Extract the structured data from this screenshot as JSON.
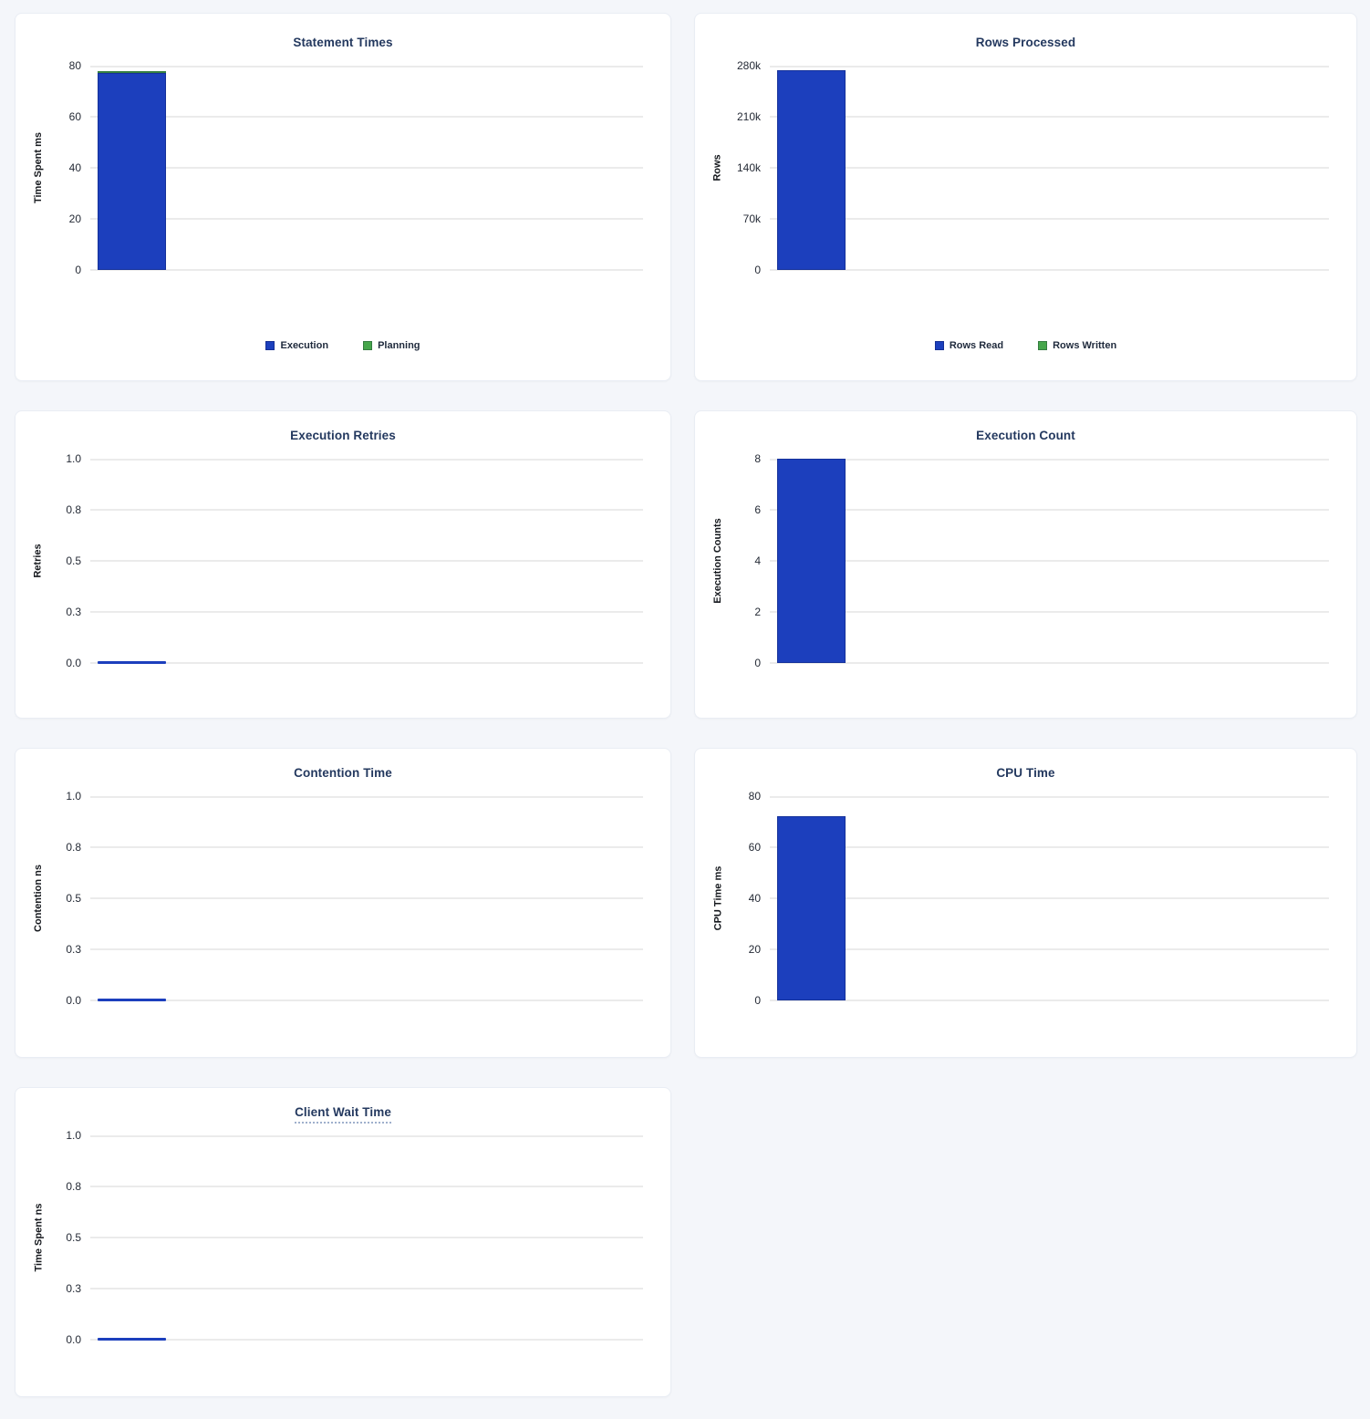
{
  "colors": {
    "bar_blue": "#1c3fbd",
    "bar_green": "#46a64b",
    "grid_line": "#ebebeb",
    "title_text": "#24395f",
    "tick_text": "#242a35",
    "page_background": "#f4f6fa",
    "panel_background": "#ffffff"
  },
  "chart_data": [
    {
      "type": "bar",
      "title": "Statement Times",
      "ylabel": "Time Spent ms",
      "ylim": [
        0,
        80
      ],
      "yticks": [
        0,
        20,
        40,
        60,
        80
      ],
      "ytick_labels": [
        "0",
        "20",
        "40",
        "60",
        "80"
      ],
      "stacked": true,
      "grid": true,
      "legend_position": "bottom",
      "series": [
        {
          "name": "Execution",
          "color": "#1c3fbd",
          "values": [
            77
          ]
        },
        {
          "name": "Planning",
          "color": "#46a64b",
          "values": [
            1
          ]
        }
      ]
    },
    {
      "type": "bar",
      "title": "Rows Processed",
      "ylabel": "Rows",
      "ylim": [
        0,
        280000
      ],
      "yticks": [
        0,
        70000,
        140000,
        210000,
        280000
      ],
      "ytick_labels": [
        "0",
        "70k",
        "140k",
        "210k",
        "280k"
      ],
      "stacked": true,
      "grid": true,
      "legend_position": "bottom",
      "series": [
        {
          "name": "Rows Read",
          "color": "#1c3fbd",
          "values": [
            274000
          ]
        },
        {
          "name": "Rows Written",
          "color": "#46a64b",
          "values": [
            0
          ]
        }
      ]
    },
    {
      "type": "bar",
      "title": "Execution Retries",
      "ylabel": "Retries",
      "ylim": [
        0,
        1
      ],
      "yticks": [
        0,
        0.25,
        0.5,
        0.75,
        1
      ],
      "ytick_labels": [
        "0.0",
        "0.3",
        "0.5",
        "0.8",
        "1.0"
      ],
      "stacked": false,
      "grid": true,
      "legend_position": "none",
      "series": [
        {
          "color": "#1c3fbd",
          "values": [
            0
          ]
        }
      ]
    },
    {
      "type": "bar",
      "title": "Execution Count",
      "ylabel": "Execution Counts",
      "ylim": [
        0,
        8
      ],
      "yticks": [
        0,
        2,
        4,
        6,
        8
      ],
      "ytick_labels": [
        "0",
        "2",
        "4",
        "6",
        "8"
      ],
      "stacked": false,
      "grid": true,
      "legend_position": "none",
      "series": [
        {
          "color": "#1c3fbd",
          "values": [
            8
          ]
        }
      ]
    },
    {
      "type": "bar",
      "title": "Contention Time",
      "ylabel": "Contention ns",
      "ylim": [
        0,
        1
      ],
      "yticks": [
        0,
        0.25,
        0.5,
        0.75,
        1
      ],
      "ytick_labels": [
        "0.0",
        "0.3",
        "0.5",
        "0.8",
        "1.0"
      ],
      "stacked": false,
      "grid": true,
      "legend_position": "none",
      "series": [
        {
          "color": "#1c3fbd",
          "values": [
            0
          ]
        }
      ]
    },
    {
      "type": "bar",
      "title": "CPU Time",
      "ylabel": "CPU Time ms",
      "ylim": [
        0,
        80
      ],
      "yticks": [
        0,
        20,
        40,
        60,
        80
      ],
      "ytick_labels": [
        "0",
        "20",
        "40",
        "60",
        "80"
      ],
      "stacked": false,
      "grid": true,
      "legend_position": "none",
      "series": [
        {
          "color": "#1c3fbd",
          "values": [
            72
          ]
        }
      ]
    },
    {
      "type": "bar",
      "title": "Client Wait Time",
      "ylabel": "Time Spent ns",
      "ylim": [
        0,
        1
      ],
      "yticks": [
        0,
        0.25,
        0.5,
        0.75,
        1
      ],
      "ytick_labels": [
        "0.0",
        "0.3",
        "0.5",
        "0.8",
        "1.0"
      ],
      "stacked": false,
      "grid": true,
      "legend_position": "none",
      "series": [
        {
          "color": "#1c3fbd",
          "values": [
            0
          ]
        }
      ]
    }
  ]
}
